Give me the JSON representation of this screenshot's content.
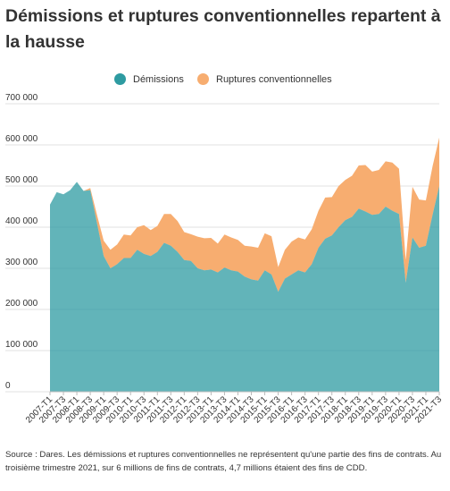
{
  "title": "Démissions et ruptures conventionnelles repartent à la hausse",
  "source": "Source : Dares. Les démissions et ruptures conventionnelles ne représentent qu'une partie des fins de contrats. Au troisième trimestre 2021, sur 6 millions de fins de contrats, 4,7 millions étaient des fins de CDD.",
  "colors": {
    "series_0": "#2e9ba1",
    "series_1": "#f7ad70",
    "grid": "#e2e2e2",
    "text": "#333333"
  },
  "chart_data": {
    "type": "area",
    "stacked": true,
    "title": "Démissions et ruptures conventionnelles repartent à la hausse",
    "xlabel": "",
    "ylabel": "",
    "ylim": [
      0,
      700000
    ],
    "yticks": [
      0,
      100000,
      200000,
      300000,
      400000,
      500000,
      600000,
      700000
    ],
    "ytick_labels": [
      "0",
      "100 000",
      "200 000",
      "300 000",
      "400 000",
      "500 000",
      "600 000",
      "700 000"
    ],
    "grid": true,
    "legend_position": "top-center",
    "x_tick_labels": [
      "2007-T1",
      "2007-T3",
      "2008-T1",
      "2008-T3",
      "2009-T1",
      "2009-T3",
      "2010-T1",
      "2010-T3",
      "2011-T1",
      "2011-T3",
      "2012-T1",
      "2012-T3",
      "2013-T1",
      "2013-T3",
      "2014-T1",
      "2014-T3",
      "2015-T1",
      "2015-T3",
      "2016-T1",
      "2016-T3",
      "2017-T1",
      "2017-T3",
      "2018-T1",
      "2018-T3",
      "2019-T1",
      "2019-T3",
      "2020-T1",
      "2020-T3",
      "2021-T1",
      "2021-T3"
    ],
    "x": [
      "2007-T1",
      "2007-T2",
      "2007-T3",
      "2007-T4",
      "2008-T1",
      "2008-T2",
      "2008-T3",
      "2008-T4",
      "2009-T1",
      "2009-T2",
      "2009-T3",
      "2009-T4",
      "2010-T1",
      "2010-T2",
      "2010-T3",
      "2010-T4",
      "2011-T1",
      "2011-T2",
      "2011-T3",
      "2011-T4",
      "2012-T1",
      "2012-T2",
      "2012-T3",
      "2012-T4",
      "2013-T1",
      "2013-T2",
      "2013-T3",
      "2013-T4",
      "2014-T1",
      "2014-T2",
      "2014-T3",
      "2014-T4",
      "2015-T1",
      "2015-T2",
      "2015-T3",
      "2015-T4",
      "2016-T1",
      "2016-T2",
      "2016-T3",
      "2016-T4",
      "2017-T1",
      "2017-T2",
      "2017-T3",
      "2017-T4",
      "2018-T1",
      "2018-T2",
      "2018-T3",
      "2018-T4",
      "2019-T1",
      "2019-T2",
      "2019-T3",
      "2019-T4",
      "2020-T1",
      "2020-T2",
      "2020-T3",
      "2020-T4",
      "2021-T1",
      "2021-T2",
      "2021-T3"
    ],
    "series": [
      {
        "name": "Démissions",
        "values": [
          455000,
          485000,
          480000,
          490000,
          510000,
          488000,
          490000,
          410000,
          330000,
          300000,
          310000,
          325000,
          325000,
          345000,
          335000,
          330000,
          340000,
          362000,
          355000,
          340000,
          320000,
          318000,
          300000,
          295000,
          297000,
          290000,
          302000,
          295000,
          292000,
          280000,
          273000,
          270000,
          295000,
          285000,
          243000,
          275000,
          285000,
          295000,
          290000,
          310000,
          350000,
          372000,
          380000,
          400000,
          417000,
          425000,
          445000,
          438000,
          430000,
          432000,
          450000,
          440000,
          432000,
          265000,
          375000,
          350000,
          355000,
          430000,
          500000
        ]
      },
      {
        "name": "Ruptures conventionnelles",
        "values": [
          0,
          0,
          0,
          0,
          0,
          0,
          5000,
          20000,
          37000,
          45000,
          48000,
          57000,
          55000,
          55000,
          70000,
          63000,
          63000,
          70000,
          77000,
          75000,
          68000,
          65000,
          77000,
          78000,
          77000,
          70000,
          80000,
          80000,
          77000,
          75000,
          80000,
          80000,
          90000,
          93000,
          60000,
          70000,
          80000,
          80000,
          80000,
          85000,
          90000,
          100000,
          93000,
          100000,
          98000,
          100000,
          105000,
          113000,
          105000,
          107000,
          110000,
          117000,
          110000,
          55000,
          123000,
          117000,
          110000,
          118000,
          118000
        ]
      }
    ]
  }
}
